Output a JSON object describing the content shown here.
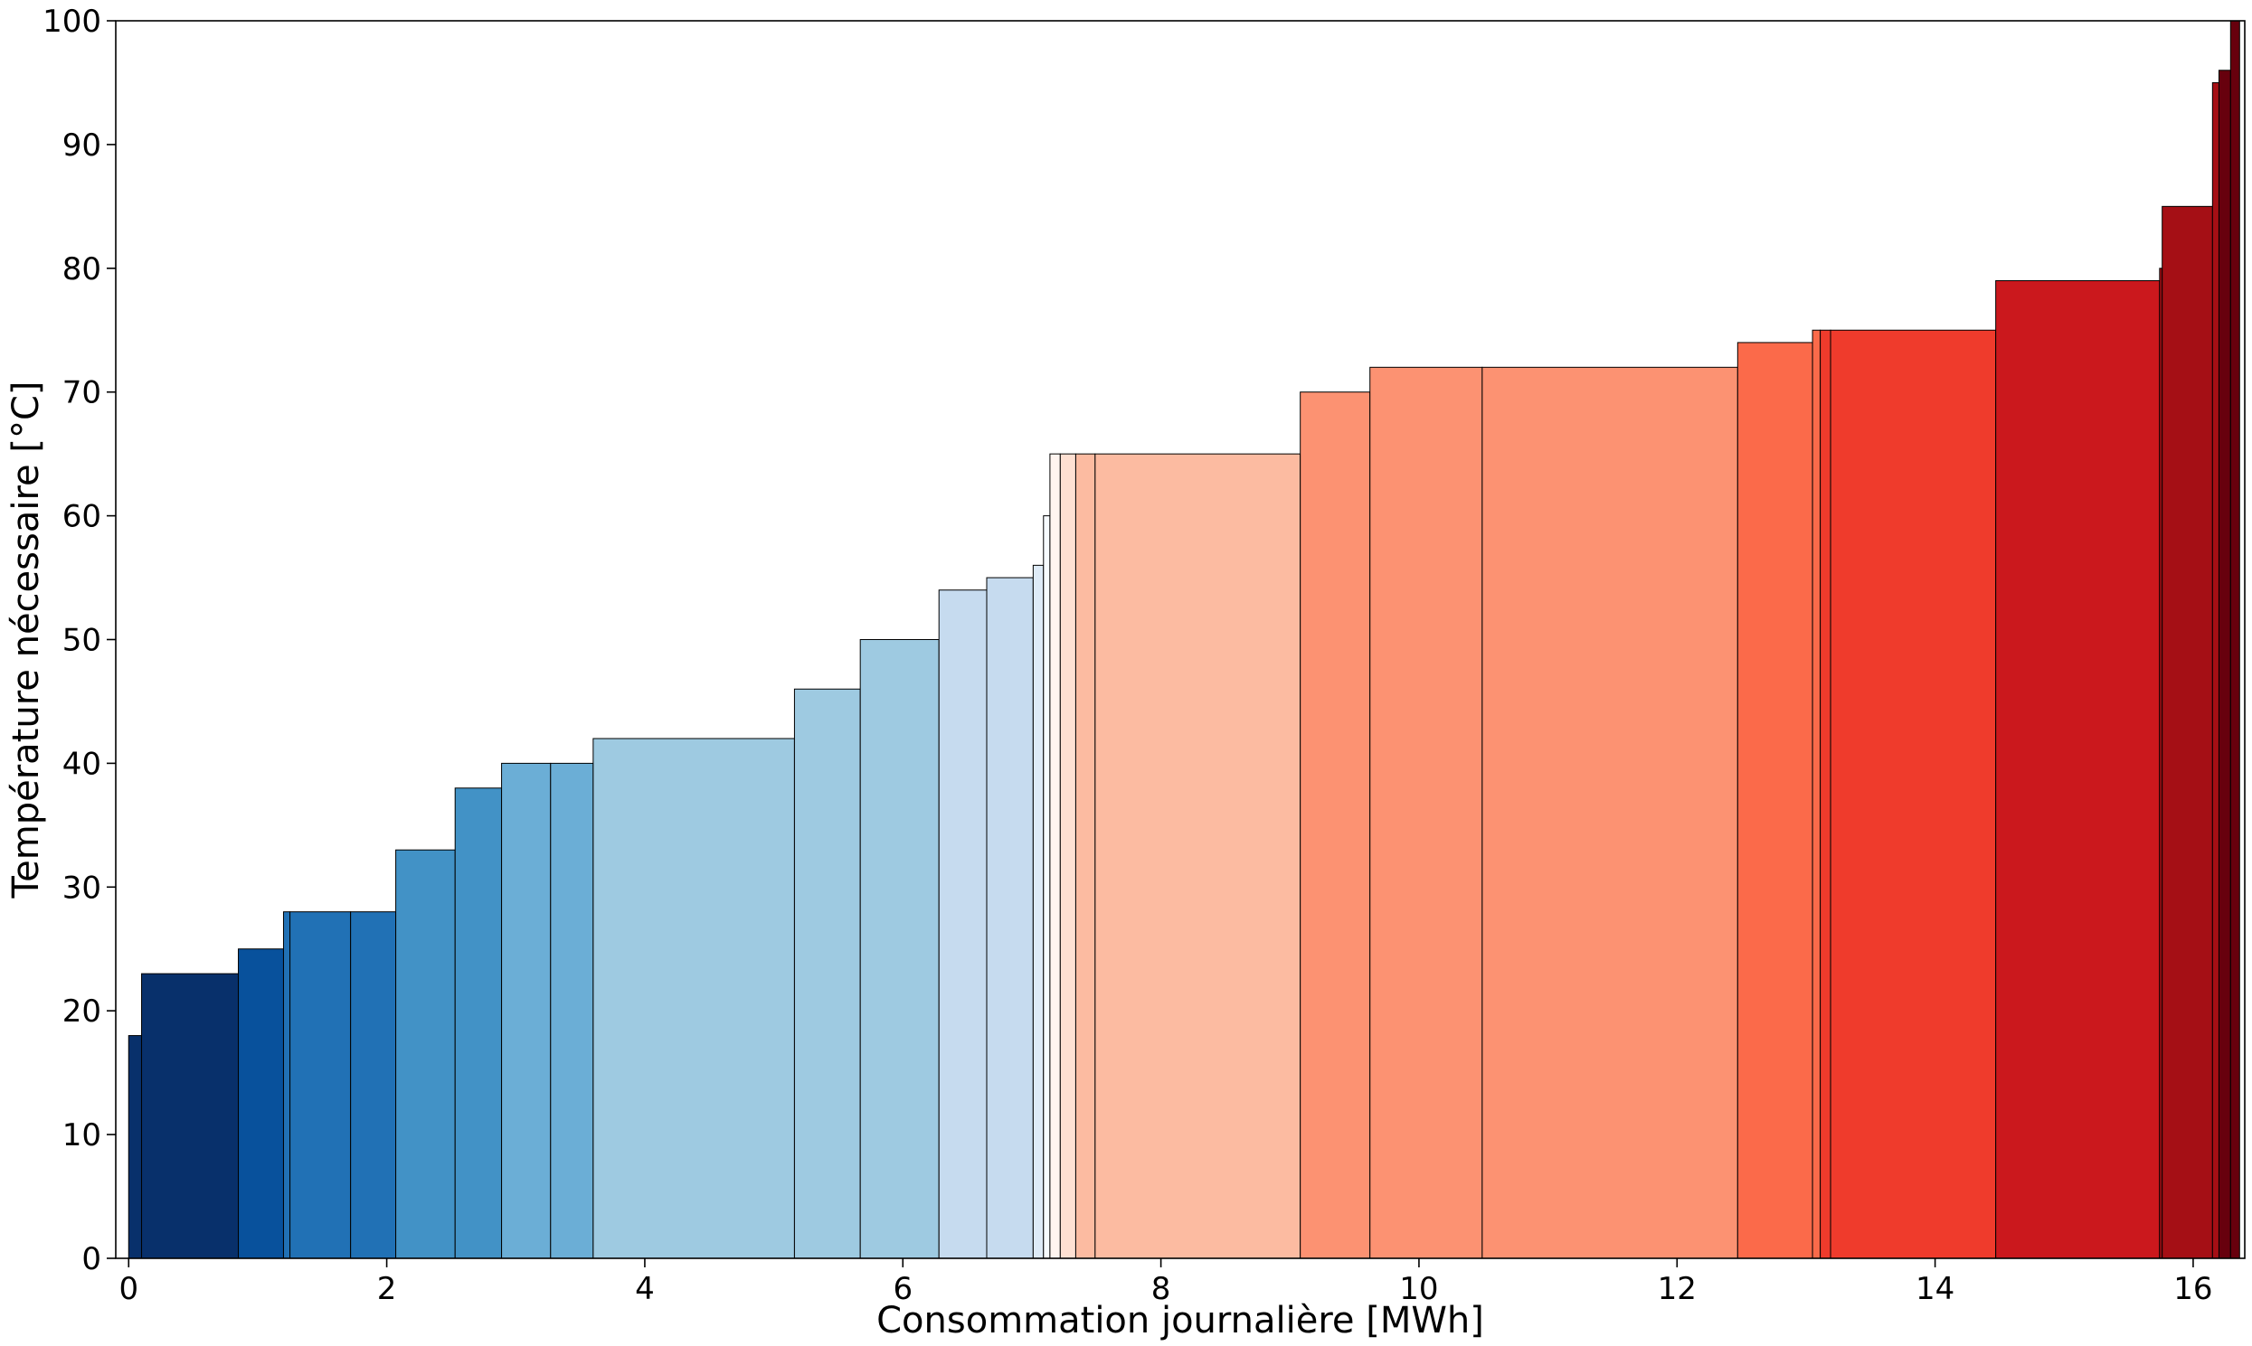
{
  "chart_data": {
    "type": "bar",
    "variant": "variable-width step bars (cumulative consumption vs required temperature)",
    "title": "",
    "xlabel": "Consommation journalière [MWh]",
    "ylabel": "Température nécessaire [°C]",
    "xlim": [
      -0.1,
      16.4
    ],
    "ylim": [
      0,
      100
    ],
    "x_ticks": [
      0,
      2,
      4,
      6,
      8,
      10,
      12,
      14,
      16
    ],
    "y_ticks": [
      0,
      10,
      20,
      30,
      40,
      50,
      60,
      70,
      80,
      90,
      100
    ],
    "grid": false,
    "legend": "none",
    "bars": [
      {
        "x0": 0.0,
        "x1": 0.1,
        "value": 18,
        "color": "#08306b"
      },
      {
        "x0": 0.1,
        "x1": 0.85,
        "value": 23,
        "color": "#08306b"
      },
      {
        "x0": 0.85,
        "x1": 1.2,
        "value": 25,
        "color": "#08519c"
      },
      {
        "x0": 1.2,
        "x1": 1.25,
        "value": 28,
        "color": "#2171b5"
      },
      {
        "x0": 1.25,
        "x1": 1.72,
        "value": 28,
        "color": "#2171b5"
      },
      {
        "x0": 1.72,
        "x1": 2.07,
        "value": 28,
        "color": "#2171b5"
      },
      {
        "x0": 2.07,
        "x1": 2.53,
        "value": 33,
        "color": "#4292c6"
      },
      {
        "x0": 2.53,
        "x1": 2.89,
        "value": 38,
        "color": "#4292c6"
      },
      {
        "x0": 2.89,
        "x1": 3.27,
        "value": 40,
        "color": "#6baed6"
      },
      {
        "x0": 3.27,
        "x1": 3.6,
        "value": 40,
        "color": "#6baed6"
      },
      {
        "x0": 3.6,
        "x1": 5.16,
        "value": 42,
        "color": "#9ecae1"
      },
      {
        "x0": 5.16,
        "x1": 5.67,
        "value": 46,
        "color": "#9ecae1"
      },
      {
        "x0": 5.67,
        "x1": 6.28,
        "value": 50,
        "color": "#9ecae1"
      },
      {
        "x0": 6.28,
        "x1": 6.65,
        "value": 54,
        "color": "#c6dbef"
      },
      {
        "x0": 6.65,
        "x1": 7.01,
        "value": 55,
        "color": "#c6dbef"
      },
      {
        "x0": 7.01,
        "x1": 7.09,
        "value": 56,
        "color": "#deebf7"
      },
      {
        "x0": 7.09,
        "x1": 7.14,
        "value": 60,
        "color": "#f7fbff"
      },
      {
        "x0": 7.14,
        "x1": 7.22,
        "value": 65,
        "color": "#fff5f0"
      },
      {
        "x0": 7.22,
        "x1": 7.34,
        "value": 65,
        "color": "#fee0d2"
      },
      {
        "x0": 7.34,
        "x1": 7.49,
        "value": 65,
        "color": "#fcbba1"
      },
      {
        "x0": 7.49,
        "x1": 9.08,
        "value": 65,
        "color": "#fcbba1"
      },
      {
        "x0": 9.08,
        "x1": 9.62,
        "value": 70,
        "color": "#fc9272"
      },
      {
        "x0": 9.62,
        "x1": 10.49,
        "value": 72,
        "color": "#fc9272"
      },
      {
        "x0": 10.49,
        "x1": 12.47,
        "value": 72,
        "color": "#fc9272"
      },
      {
        "x0": 12.47,
        "x1": 13.05,
        "value": 74,
        "color": "#fb6a4a"
      },
      {
        "x0": 13.05,
        "x1": 13.11,
        "value": 75,
        "color": "#fb6a4a"
      },
      {
        "x0": 13.11,
        "x1": 13.19,
        "value": 75,
        "color": "#ef3b2c"
      },
      {
        "x0": 13.19,
        "x1": 14.47,
        "value": 75,
        "color": "#ef3b2c"
      },
      {
        "x0": 14.47,
        "x1": 15.74,
        "value": 79,
        "color": "#cb181d"
      },
      {
        "x0": 15.74,
        "x1": 15.76,
        "value": 80,
        "color": "#a50f15"
      },
      {
        "x0": 15.76,
        "x1": 16.15,
        "value": 85,
        "color": "#a50f15"
      },
      {
        "x0": 16.15,
        "x1": 16.2,
        "value": 95,
        "color": "#a50f15"
      },
      {
        "x0": 16.2,
        "x1": 16.29,
        "value": 96,
        "color": "#67000d"
      },
      {
        "x0": 16.29,
        "x1": 16.36,
        "value": 100,
        "color": "#67000d"
      }
    ]
  }
}
